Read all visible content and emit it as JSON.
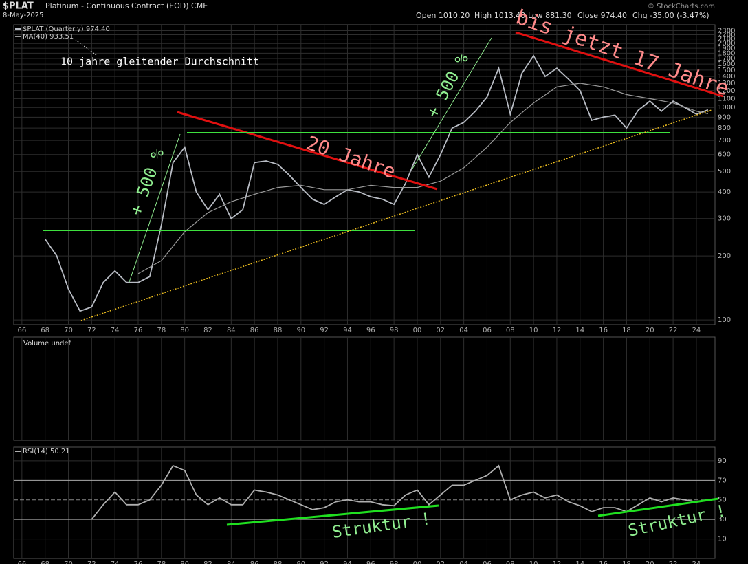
{
  "chart_data": [
    {
      "type": "line",
      "log": true,
      "title": "$PLAT",
      "subtitle": "Platinum - Continuous Contract (EOD) CME",
      "date": "8-May-2025",
      "credit": "© StockCharts.com",
      "stats": [
        "Open 1010.20",
        "High 1013.40",
        "Low 881.30",
        "Close 974.40",
        "Chg -35.00 (-3.47%)"
      ],
      "annotations": [
        "10 jahre gleitender Durchschnitt",
        "+ 500 %",
        "+ 500 %",
        "20 Jahre",
        "bis jetzt 17 Jahre"
      ],
      "xlim": [
        1965.3,
        2025.6
      ],
      "xticks": [
        {
          "value": 1966,
          "label": "66"
        },
        {
          "value": 1968,
          "label": "68"
        },
        {
          "value": 1970,
          "label": "70"
        },
        {
          "value": 1972,
          "label": "72"
        },
        {
          "value": 1974,
          "label": "74"
        },
        {
          "value": 1976,
          "label": "76"
        },
        {
          "value": 1978,
          "label": "78"
        },
        {
          "value": 1980,
          "label": "80"
        },
        {
          "value": 1982,
          "label": "82"
        },
        {
          "value": 1984,
          "label": "84"
        },
        {
          "value": 1986,
          "label": "86"
        },
        {
          "value": 1988,
          "label": "88"
        },
        {
          "value": 1990,
          "label": "90"
        },
        {
          "value": 1992,
          "label": "92"
        },
        {
          "value": 1994,
          "label": "94"
        },
        {
          "value": 1996,
          "label": "96"
        },
        {
          "value": 1998,
          "label": "98"
        },
        {
          "value": 2000,
          "label": "00"
        },
        {
          "value": 2002,
          "label": "02"
        },
        {
          "value": 2004,
          "label": "04"
        },
        {
          "value": 2006,
          "label": "06"
        },
        {
          "value": 2008,
          "label": "08"
        },
        {
          "value": 2010,
          "label": "10"
        },
        {
          "value": 2012,
          "label": "12"
        },
        {
          "value": 2014,
          "label": "14"
        },
        {
          "value": 2016,
          "label": "16"
        },
        {
          "value": 2018,
          "label": "18"
        },
        {
          "value": 2020,
          "label": "20"
        },
        {
          "value": 2022,
          "label": "22"
        },
        {
          "value": 2024,
          "label": "24"
        }
      ],
      "ylim": [
        95,
        2450
      ],
      "yticks": [
        100,
        200,
        300,
        400,
        500,
        600,
        700,
        800,
        900,
        1000,
        1100,
        1200,
        1300,
        1400,
        1500,
        1600,
        1700,
        1800,
        1900,
        2000,
        2100,
        2200,
        2300
      ],
      "grid": true,
      "x": [
        1968,
        1969,
        1970,
        1971,
        1972,
        1973,
        1974,
        1975,
        1976,
        1977,
        1978,
        1979,
        1980,
        1981,
        1982,
        1983,
        1984,
        1985,
        1986,
        1987,
        1988,
        1989,
        1990,
        1991,
        1992,
        1993,
        1994,
        1995,
        1996,
        1997,
        1998,
        1999,
        2000,
        2001,
        2002,
        2003,
        2004,
        2005,
        2006,
        2007,
        2008,
        2009,
        2010,
        2011,
        2012,
        2013,
        2014,
        2015,
        2016,
        2017,
        2018,
        2019,
        2020,
        2021,
        2022,
        2023,
        2024,
        2025
      ],
      "series": [
        {
          "name": "$PLAT (Quarterly) 974.40",
          "color": "#b8bcc4",
          "values": [
            240,
            200,
            140,
            110,
            115,
            150,
            170,
            150,
            150,
            160,
            280,
            550,
            650,
            400,
            330,
            390,
            300,
            330,
            550,
            560,
            540,
            480,
            420,
            370,
            350,
            380,
            410,
            400,
            380,
            370,
            350,
            440,
            600,
            470,
            600,
            800,
            850,
            960,
            1120,
            1530,
            930,
            1450,
            1750,
            1400,
            1530,
            1360,
            1200,
            870,
            900,
            920,
            800,
            970,
            1070,
            960,
            1070,
            1000,
            930,
            974.4
          ]
        },
        {
          "name": "MA(40) 933.51",
          "color": "#9a9a9a",
          "x": [
            1976,
            1978,
            1980,
            1982,
            1984,
            1986,
            1988,
            1990,
            1992,
            1994,
            1996,
            1998,
            2000,
            2002,
            2004,
            2006,
            2008,
            2010,
            2012,
            2014,
            2016,
            2018,
            2020,
            2022,
            2024,
            2025
          ],
          "values": [
            165,
            190,
            260,
            320,
            360,
            390,
            420,
            430,
            410,
            410,
            430,
            420,
            420,
            450,
            520,
            650,
            850,
            1050,
            1250,
            1300,
            1250,
            1150,
            1100,
            1050,
            960,
            933.51
          ]
        }
      ]
    },
    {
      "type": "bar",
      "title": "Volume undef"
    },
    {
      "type": "line",
      "xlim": [
        1965.3,
        2025.6
      ],
      "ylim": [
        -10,
        104
      ],
      "yticks": [
        10,
        30,
        50,
        70,
        90
      ],
      "grid": true,
      "annotations": [
        "Struktur !",
        "Struktur !"
      ],
      "x": [
        1972,
        1973,
        1974,
        1975,
        1976,
        1977,
        1978,
        1979,
        1980,
        1981,
        1982,
        1983,
        1984,
        1985,
        1986,
        1987,
        1988,
        1989,
        1990,
        1991,
        1992,
        1993,
        1994,
        1995,
        1996,
        1997,
        1998,
        1999,
        2000,
        2001,
        2002,
        2003,
        2004,
        2005,
        2006,
        2007,
        2008,
        2009,
        2010,
        2011,
        2012,
        2013,
        2014,
        2015,
        2016,
        2017,
        2018,
        2019,
        2020,
        2021,
        2022,
        2023,
        2024,
        2025
      ],
      "series": [
        {
          "name": "RSI(14) 50.21",
          "color": "#b0b0b0",
          "values": [
            30,
            45,
            58,
            45,
            45,
            50,
            65,
            85,
            80,
            55,
            45,
            52,
            45,
            45,
            60,
            58,
            55,
            50,
            45,
            40,
            42,
            48,
            50,
            48,
            48,
            45,
            44,
            55,
            60,
            45,
            55,
            65,
            65,
            70,
            75,
            85,
            50,
            55,
            58,
            52,
            55,
            48,
            44,
            38,
            42,
            42,
            38,
            45,
            52,
            48,
            52,
            50,
            48,
            50.21
          ]
        }
      ]
    }
  ]
}
